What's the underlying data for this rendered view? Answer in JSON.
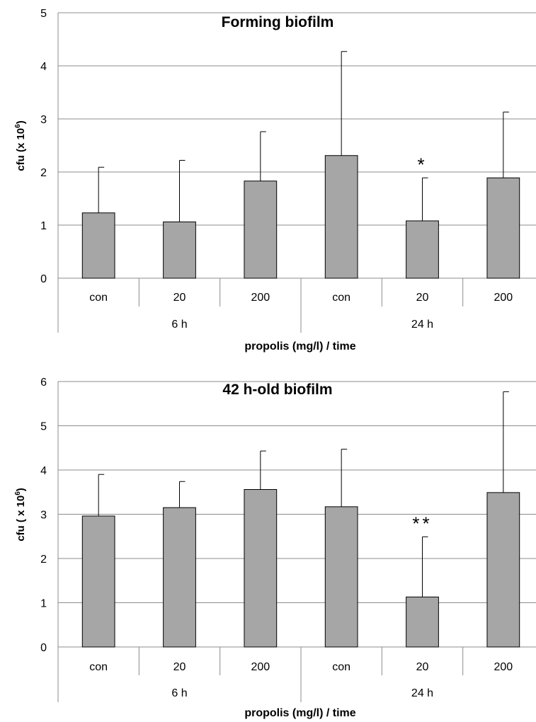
{
  "chart_data": [
    {
      "type": "bar",
      "title": "Forming biofilm",
      "ylabel_main": "cfu (x 10",
      "ylabel_sup": "6",
      "ylabel_end": ")",
      "xlabel": "propolis (mg/l) / time",
      "ylim": [
        0,
        5
      ],
      "yticks": [
        "0",
        "1",
        "2",
        "3",
        "4",
        "5"
      ],
      "grid": true,
      "categories": [
        "con",
        "20",
        "200",
        "con",
        "20",
        "200"
      ],
      "groups": [
        "6 h",
        "24 h"
      ],
      "values": [
        1.23,
        1.06,
        1.83,
        2.31,
        1.08,
        1.89
      ],
      "errors": [
        0.86,
        1.16,
        0.93,
        1.96,
        0.81,
        1.24
      ],
      "annotations": [
        "",
        "",
        "",
        "",
        "*",
        ""
      ],
      "bar_color": "#a6a6a6"
    },
    {
      "type": "bar",
      "title": "42 h-old biofilm",
      "ylabel_main": "cfu ( x 10",
      "ylabel_sup": "6",
      "ylabel_end": ")",
      "xlabel": "propolis (mg/l) / time",
      "ylim": [
        0,
        6
      ],
      "yticks": [
        "0",
        "1",
        "2",
        "3",
        "4",
        "5",
        "6"
      ],
      "grid": true,
      "categories": [
        "con",
        "20",
        "200",
        "con",
        "20",
        "200"
      ],
      "groups": [
        "6 h",
        "24 h"
      ],
      "values": [
        2.96,
        3.15,
        3.56,
        3.17,
        1.13,
        3.49
      ],
      "errors": [
        0.94,
        0.59,
        0.87,
        1.3,
        1.36,
        2.28
      ],
      "annotations": [
        "",
        "",
        "",
        "",
        "**",
        ""
      ],
      "bar_color": "#a6a6a6"
    }
  ]
}
